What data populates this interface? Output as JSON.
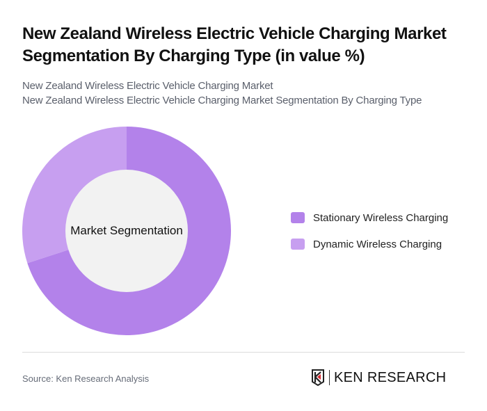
{
  "header": {
    "title": "New Zealand Wireless Electric Vehicle Charging Market Segmentation By Charging Type (in value %)",
    "subtitle_line1": "New Zealand Wireless Electric Vehicle Charging Market",
    "subtitle_line2": "New Zealand Wireless Electric Vehicle Charging Market Segmentation By Charging Type"
  },
  "chart": {
    "center_label": "Market Segmentation"
  },
  "legend": {
    "items": [
      {
        "label": "Stationary Wireless Charging",
        "color": "#b382ea"
      },
      {
        "label": "Dynamic Wireless Charging",
        "color": "#c79ff0"
      }
    ]
  },
  "footer": {
    "source": "Source: Ken Research Analysis",
    "logo_text": "KEN RESEARCH"
  },
  "chart_data": {
    "type": "pie",
    "subtype": "donut",
    "title": "New Zealand Wireless Electric Vehicle Charging Market Segmentation By Charging Type (in value %)",
    "center_label": "Market Segmentation",
    "categories": [
      "Stationary Wireless Charging",
      "Dynamic Wireless Charging"
    ],
    "values": [
      70,
      30
    ],
    "colors": [
      "#b382ea",
      "#c79ff0"
    ],
    "legend_position": "right",
    "start_angle": "12 o'clock, clockwise"
  }
}
